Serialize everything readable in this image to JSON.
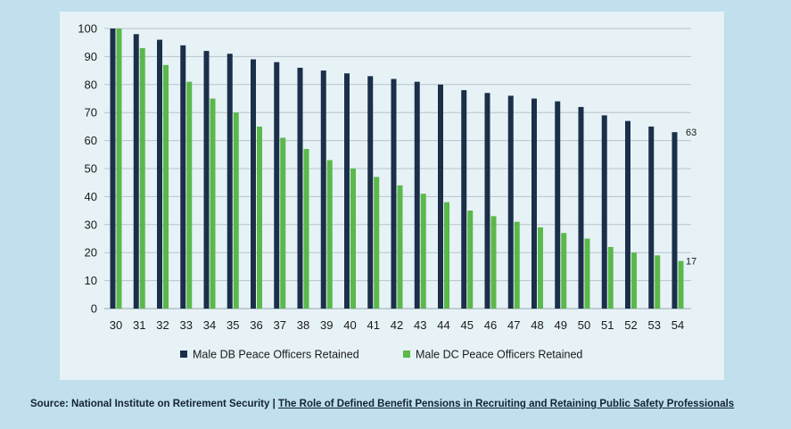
{
  "chart_data": {
    "type": "bar",
    "categories": [
      "30",
      "31",
      "32",
      "33",
      "34",
      "35",
      "36",
      "37",
      "38",
      "39",
      "40",
      "41",
      "42",
      "43",
      "44",
      "45",
      "46",
      "47",
      "48",
      "49",
      "50",
      "51",
      "52",
      "53",
      "54"
    ],
    "series": [
      {
        "name": "Male DB Peace Officers Retained",
        "color": "#1b2f4a",
        "values": [
          100,
          98,
          96,
          94,
          92,
          91,
          89,
          88,
          86,
          85,
          84,
          83,
          82,
          81,
          80,
          78,
          77,
          76,
          75,
          74,
          72,
          69,
          67,
          65,
          63
        ]
      },
      {
        "name": "Male DC Peace Officers Retained",
        "color": "#5bb84a",
        "values": [
          100,
          93,
          87,
          81,
          75,
          70,
          65,
          61,
          57,
          53,
          50,
          47,
          44,
          41,
          38,
          35,
          33,
          31,
          29,
          27,
          25,
          22,
          20,
          19,
          17
        ]
      }
    ],
    "yticks": [
      0,
      10,
      20,
      30,
      40,
      50,
      60,
      70,
      80,
      90,
      100
    ],
    "ylim": [
      0,
      100
    ],
    "data_labels": [
      {
        "series": 0,
        "index": 24,
        "text": "63"
      },
      {
        "series": 1,
        "index": 24,
        "text": "17"
      }
    ],
    "grid": true,
    "legend_position": "bottom"
  },
  "source": {
    "prefix": "Source: National Institute on Retirement Security | ",
    "link_text": "The Role of Defined Benefit Pensions in Recruiting and Retaining Public Safety Professionals"
  }
}
